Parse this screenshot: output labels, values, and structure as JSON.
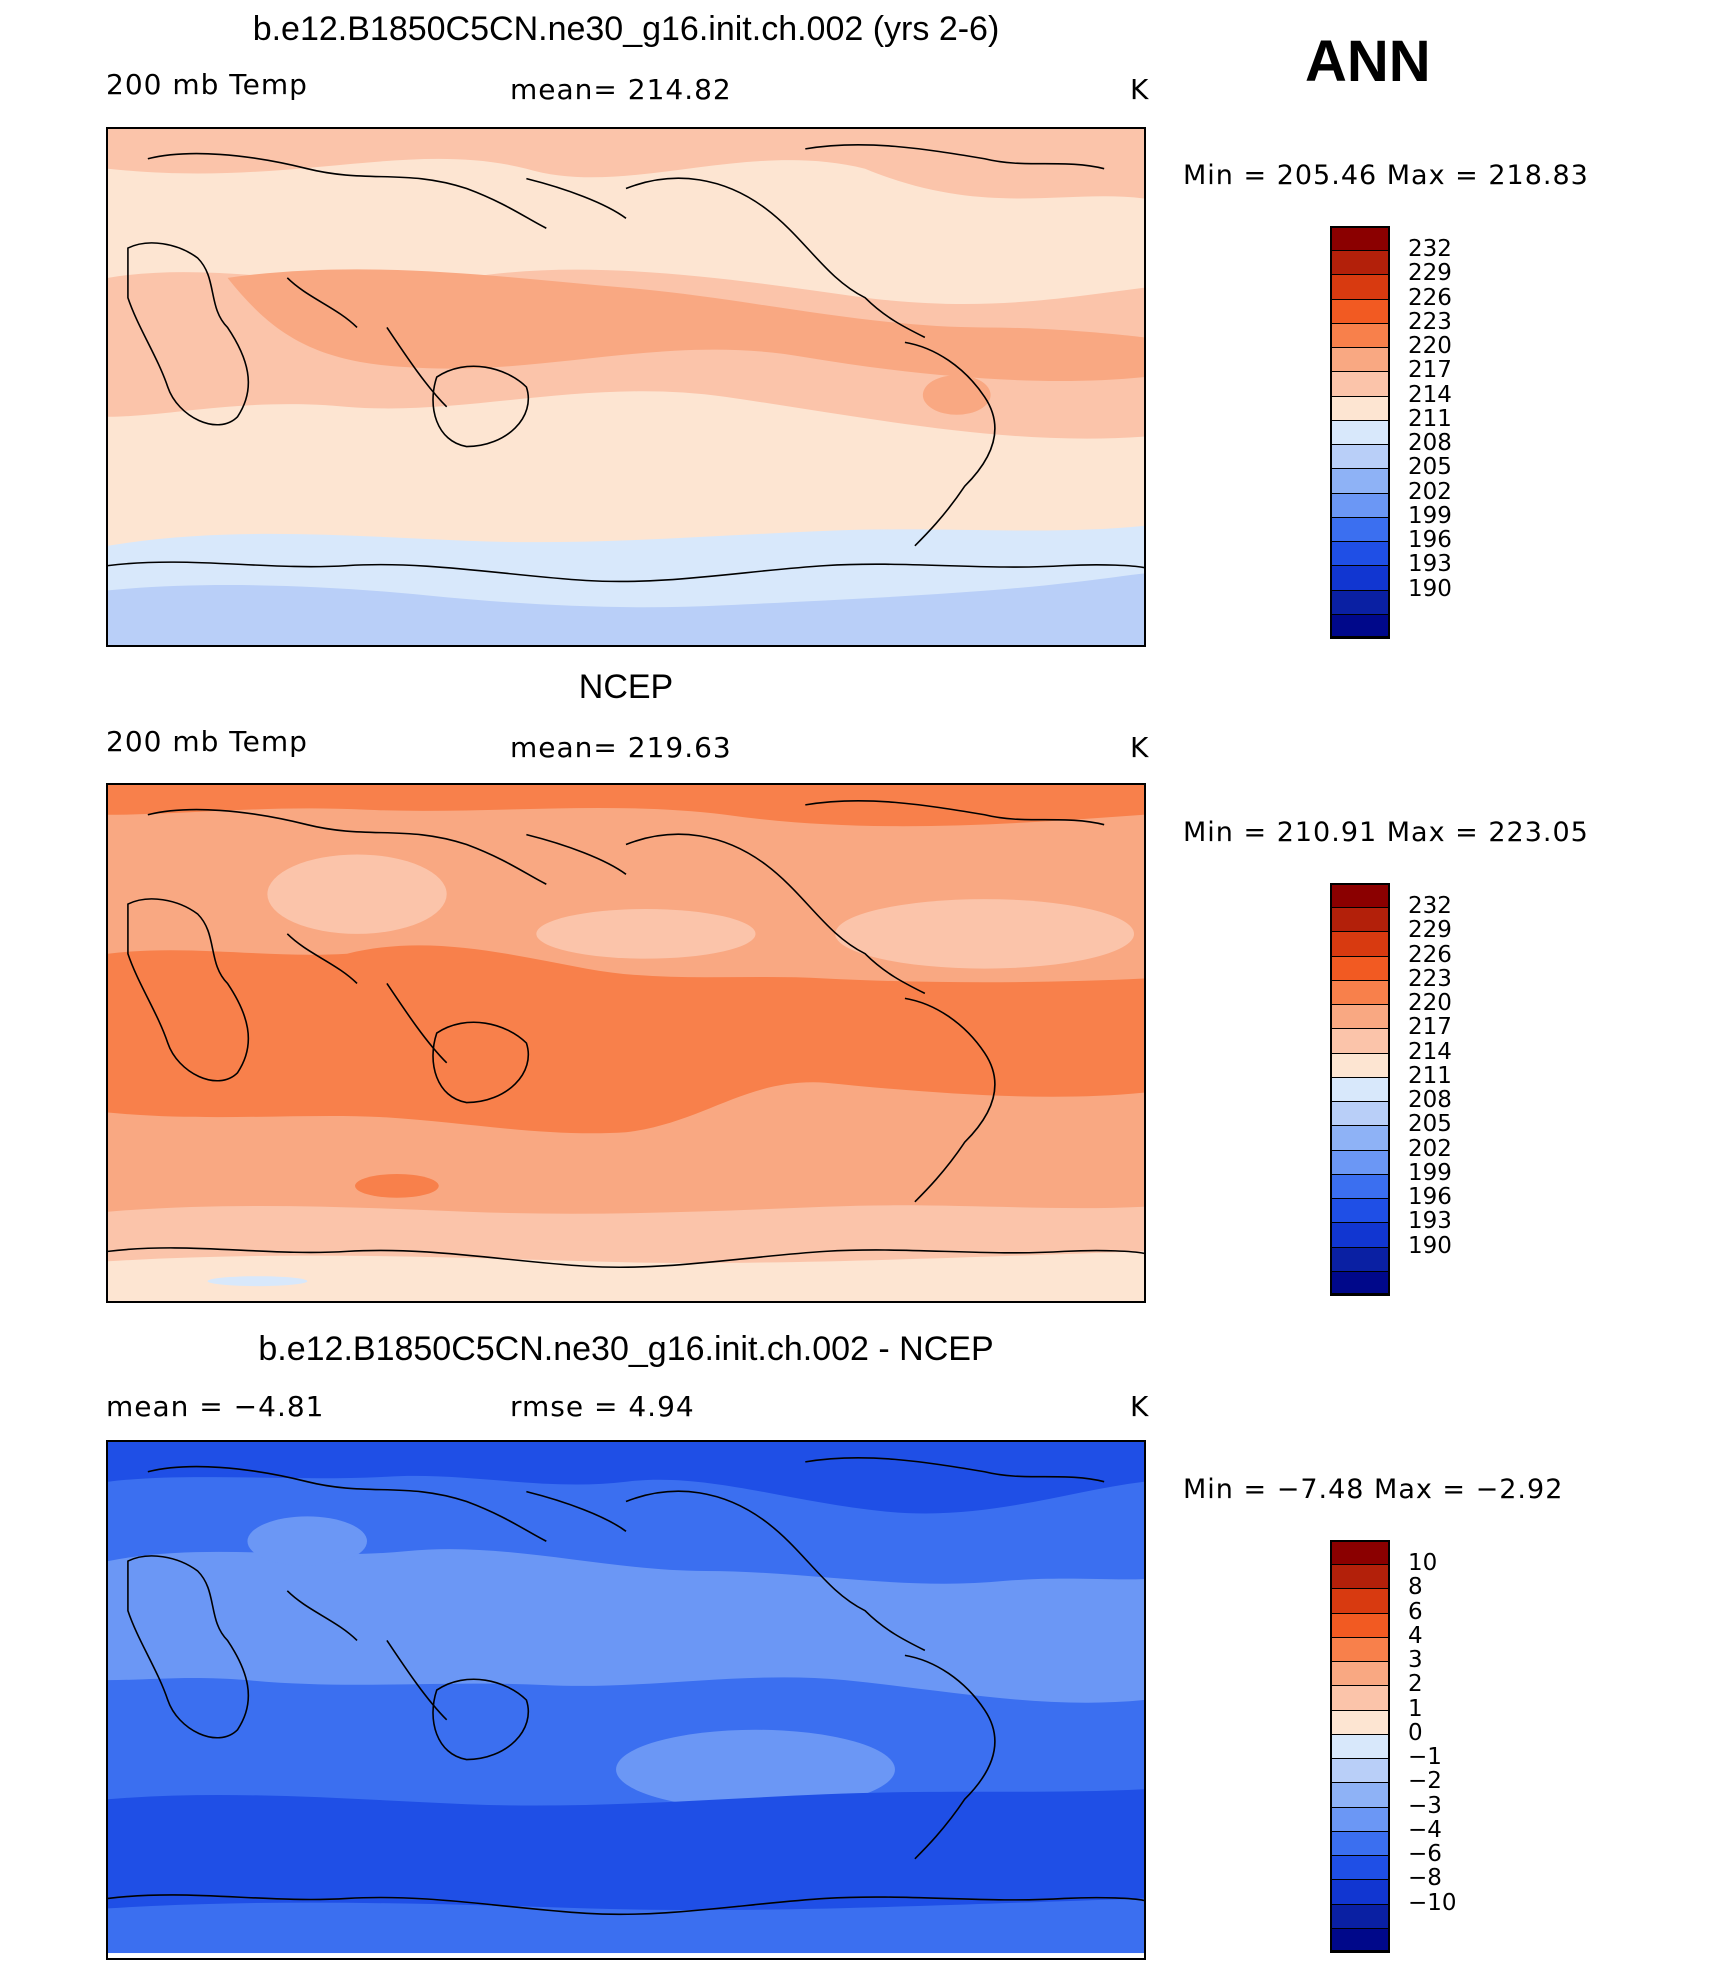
{
  "season": "ANN",
  "panels": [
    {
      "title": "b.e12.B1850C5CN.ne30_g16.init.ch.002 (yrs 2-6)",
      "left_label": "200 mb Temp",
      "center_label": "mean=  214.82",
      "units": "K",
      "minmax": "Min  =  205.46  Max  =  218.83",
      "fields": {
        "background": "#fde5d2",
        "patches": [
          {
            "c": "#fbc4aa"
          },
          {
            "c": "#f9a882"
          },
          {
            "c": "#f9a882"
          },
          {
            "c": "#d8e8fb"
          },
          {
            "c": "#b9cff8"
          }
        ]
      }
    },
    {
      "title": "NCEP",
      "left_label": "200 mb Temp",
      "center_label": "mean=  219.63",
      "units": "K",
      "minmax": "Min  =  210.91  Max  =  223.05",
      "fields": {
        "background": "#f9a882"
      }
    },
    {
      "title": "b.e12.B1850C5CN.ne30_g16.init.ch.002 - NCEP",
      "left_label": "mean  =     −4.81",
      "center_label": "rmse  =     4.94",
      "units": "K",
      "minmax": "Min  =    −7.48  Max  =    −2.92",
      "fields": {
        "background": "#3b6ff0"
      }
    }
  ],
  "colorbars": {
    "colors": [
      "#8b0000",
      "#b3200a",
      "#d83a10",
      "#f25a22",
      "#f8804b",
      "#f9a882",
      "#fbc4aa",
      "#fde5d2",
      "#d8e8fb",
      "#b9cff8",
      "#8eb2f6",
      "#6b97f5",
      "#3b6ff0",
      "#1f4fe6",
      "#1136d1",
      "#0a20a3",
      "#00088a"
    ],
    "temp_labels": [
      "232",
      "229",
      "226",
      "223",
      "220",
      "217",
      "214",
      "211",
      "208",
      "205",
      "202",
      "199",
      "196",
      "193",
      "190"
    ],
    "diff_labels": [
      "10",
      "8",
      "6",
      "4",
      "3",
      "2",
      "1",
      "0",
      "−1",
      "−2",
      "−3",
      "−4",
      "−6",
      "−8",
      "−10"
    ]
  }
}
